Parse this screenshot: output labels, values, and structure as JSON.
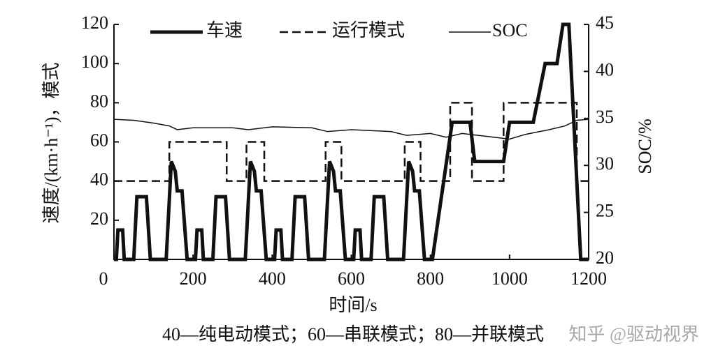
{
  "chart_data": {
    "type": "line",
    "y_label": "速度/(km·h⁻¹)，模式",
    "y2_label": "SOC/%",
    "x_label": "时间/s",
    "caption": "40—纯电动模式；60—串联模式；80—并联模式",
    "watermark": "知乎 @驱动视界",
    "xlim": [
      0,
      1200
    ],
    "xticks": [
      0,
      200,
      400,
      600,
      800,
      1000,
      1200
    ],
    "ylim": [
      0,
      120
    ],
    "yticks": [
      20,
      40,
      60,
      80,
      100,
      120
    ],
    "y2lim": [
      20,
      45
    ],
    "y2ticks": [
      20,
      25,
      30,
      35,
      40,
      45
    ],
    "series": [
      {
        "name": "车速",
        "color": "#111111",
        "style": "thick",
        "x": [
          0,
          6,
          10,
          22,
          26,
          50,
          58,
          82,
          92,
          132,
          145,
          155,
          160,
          172,
          185,
          206,
          210,
          222,
          226,
          250,
          258,
          282,
          292,
          332,
          345,
          355,
          360,
          372,
          385,
          406,
          410,
          422,
          426,
          450,
          458,
          482,
          492,
          532,
          545,
          555,
          560,
          572,
          585,
          606,
          610,
          622,
          626,
          650,
          658,
          682,
          692,
          732,
          745,
          755,
          760,
          772,
          785,
          805,
          855,
          900,
          912,
          985,
          1000,
          1060,
          1090,
          1120,
          1135,
          1150,
          1180,
          1200
        ],
        "values": [
          0,
          0,
          15,
          15,
          0,
          0,
          32,
          32,
          0,
          0,
          50,
          45,
          35,
          35,
          0,
          0,
          15,
          15,
          0,
          0,
          32,
          32,
          0,
          0,
          50,
          45,
          35,
          35,
          0,
          0,
          15,
          15,
          0,
          0,
          32,
          32,
          0,
          0,
          50,
          45,
          35,
          35,
          0,
          0,
          15,
          15,
          0,
          0,
          32,
          32,
          0,
          0,
          50,
          45,
          35,
          35,
          0,
          0,
          70,
          70,
          50,
          50,
          70,
          70,
          100,
          100,
          120,
          120,
          0,
          0
        ]
      },
      {
        "name": "运行模式",
        "color": "#111111",
        "style": "dashed",
        "x": [
          0,
          140,
          140,
          285,
          285,
          335,
          335,
          380,
          380,
          535,
          535,
          575,
          575,
          735,
          735,
          775,
          775,
          850,
          850,
          905,
          905,
          985,
          985,
          1170,
          1170,
          1200
        ],
        "values": [
          40,
          40,
          60,
          60,
          40,
          40,
          60,
          60,
          40,
          40,
          60,
          60,
          40,
          40,
          60,
          60,
          40,
          40,
          80,
          80,
          40,
          40,
          80,
          80,
          40,
          40
        ]
      },
      {
        "name": "SOC",
        "color": "#111111",
        "style": "thin",
        "axis": "y2",
        "x": [
          0,
          50,
          100,
          140,
          160,
          200,
          300,
          340,
          400,
          500,
          540,
          600,
          700,
          740,
          800,
          840,
          880,
          960,
          1000,
          1040,
          1100,
          1140,
          1170,
          1200
        ],
        "values": [
          34.9,
          34.8,
          34.5,
          34.2,
          33.8,
          34.0,
          34.0,
          33.8,
          34.1,
          34.0,
          33.6,
          33.8,
          33.6,
          33.2,
          33.4,
          33.0,
          33.4,
          33.0,
          32.8,
          33.3,
          33.8,
          34.2,
          34.8,
          34.9
        ]
      }
    ]
  }
}
